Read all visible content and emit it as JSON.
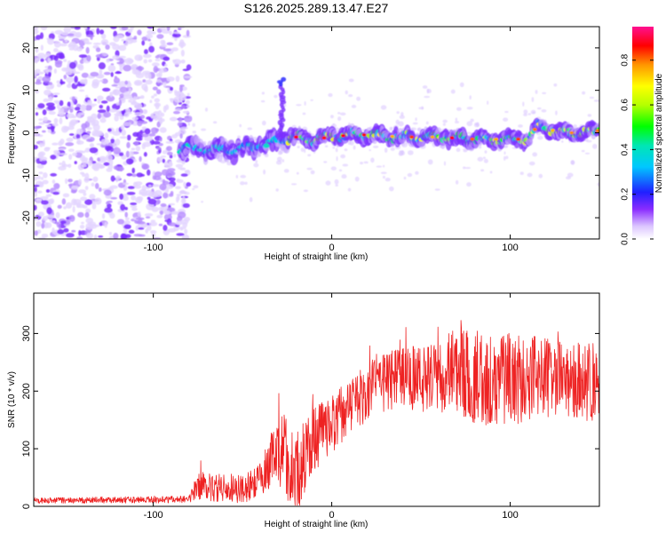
{
  "title": "S126.2025.289.13.47.E27",
  "colors": {
    "snr_line": "#ee2222",
    "dust": "#7b2fff",
    "background": "#ffffff",
    "frame": "#000000"
  },
  "chart_data": [
    {
      "type": "heatmap",
      "xlabel": "Height of straight line (km)",
      "ylabel": "Frequency (Hz)",
      "xlim": [
        -167,
        150
      ],
      "ylim": [
        -25,
        25
      ],
      "xticks": [
        -100,
        0,
        100
      ],
      "xtick_labels": [
        "-100",
        "0",
        "100"
      ],
      "yticks": [
        20,
        10,
        0,
        -10,
        -20
      ],
      "ytick_labels": [
        "20",
        "10",
        "0",
        "-10",
        "-20"
      ],
      "noise_region_x": [
        -167,
        -85
      ],
      "signal_track": [
        {
          "x": -85,
          "y": -3.5
        },
        {
          "x": -70,
          "y": -4
        },
        {
          "x": -55,
          "y": -4
        },
        {
          "x": -40,
          "y": -3
        },
        {
          "x": -30,
          "y": -2
        },
        {
          "x": -20,
          "y": -1
        },
        {
          "x": -10,
          "y": -1.5
        },
        {
          "x": 0,
          "y": -1
        },
        {
          "x": 10,
          "y": -0.5
        },
        {
          "x": 20,
          "y": -0.5
        },
        {
          "x": 40,
          "y": -1
        },
        {
          "x": 60,
          "y": -1
        },
        {
          "x": 80,
          "y": -1.5
        },
        {
          "x": 100,
          "y": -1.5
        },
        {
          "x": 110,
          "y": -1.5
        },
        {
          "x": 115,
          "y": 1.5
        },
        {
          "x": 130,
          "y": 0
        },
        {
          "x": 140,
          "y": 0
        },
        {
          "x": 150,
          "y": 0.5
        }
      ],
      "spike": {
        "x": -28,
        "y_from": 0,
        "y_to": 13
      },
      "colorbar": {
        "label": "Normalized spectral amplitude",
        "range": [
          0.0,
          0.95
        ],
        "ticks": [
          0.0,
          0.2,
          0.4,
          0.6,
          0.8
        ],
        "tick_labels": [
          "0.0",
          "0.2",
          "0.4",
          "0.6",
          "0.8"
        ]
      }
    },
    {
      "type": "line",
      "xlabel": "Height of straight line (km)",
      "ylabel": "SNR (10 * v/v)",
      "xlim": [
        -167,
        150
      ],
      "ylim": [
        0,
        370
      ],
      "xticks": [
        -100,
        0,
        100
      ],
      "xtick_labels": [
        "-100",
        "0",
        "100"
      ],
      "yticks": [
        0,
        100,
        200,
        300
      ],
      "ytick_labels": [
        "0",
        "100",
        "200",
        "300"
      ],
      "envelope": [
        {
          "x": -167,
          "mean": 10,
          "amp": 5
        },
        {
          "x": -80,
          "mean": 12,
          "amp": 6
        },
        {
          "x": -75,
          "mean": 35,
          "amp": 25
        },
        {
          "x": -50,
          "mean": 30,
          "amp": 25
        },
        {
          "x": -40,
          "mean": 45,
          "amp": 30
        },
        {
          "x": -35,
          "mean": 80,
          "amp": 50
        },
        {
          "x": -30,
          "mean": 110,
          "amp": 70
        },
        {
          "x": -20,
          "mean": 60,
          "amp": 80
        },
        {
          "x": -12,
          "mean": 110,
          "amp": 60
        },
        {
          "x": 0,
          "mean": 140,
          "amp": 50
        },
        {
          "x": 10,
          "mean": 175,
          "amp": 50
        },
        {
          "x": 25,
          "mean": 210,
          "amp": 50
        },
        {
          "x": 40,
          "mean": 225,
          "amp": 55
        },
        {
          "x": 60,
          "mean": 220,
          "amp": 60
        },
        {
          "x": 70,
          "mean": 240,
          "amp": 75
        },
        {
          "x": 80,
          "mean": 225,
          "amp": 85
        },
        {
          "x": 100,
          "mean": 220,
          "amp": 80
        },
        {
          "x": 120,
          "mean": 225,
          "amp": 70
        },
        {
          "x": 135,
          "mean": 220,
          "amp": 65
        },
        {
          "x": 150,
          "mean": 215,
          "amp": 70
        }
      ]
    }
  ]
}
